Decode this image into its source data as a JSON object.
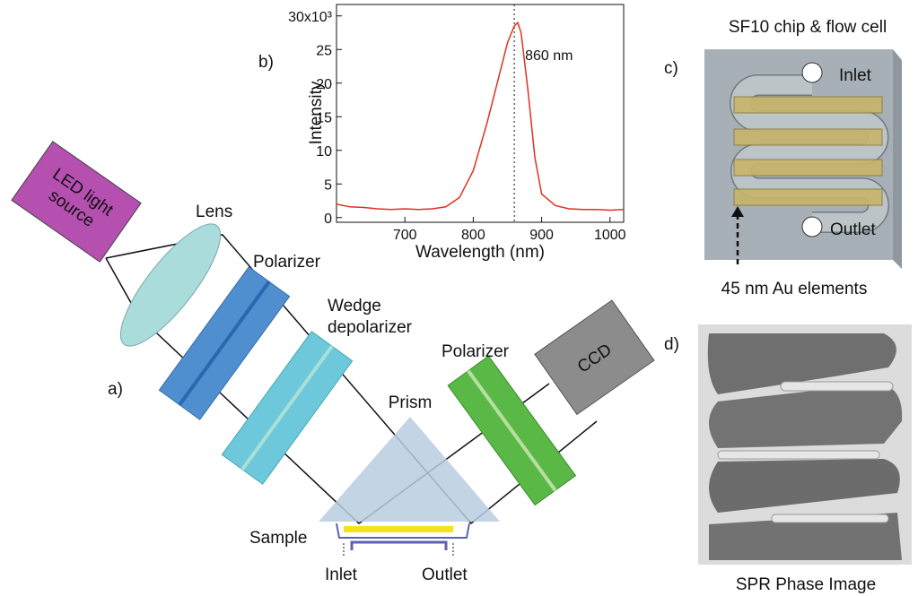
{
  "panel_a": {
    "label": "a)",
    "led": [
      "LED light",
      "source"
    ],
    "lens": "Lens",
    "polarizer_1": "Polarizer",
    "depolarizer": [
      "Wedge",
      "depolarizer"
    ],
    "polarizer_2": "Polarizer",
    "ccd": "CCD",
    "prism": "Prism",
    "sample": "Sample",
    "inlet": "Inlet",
    "outlet": "Outlet"
  },
  "chart_data": {
    "type": "line",
    "panel_label": "b)",
    "x_label": "Wavelength (nm)",
    "y_label": "Intensity",
    "x": [
      600,
      620,
      640,
      660,
      680,
      700,
      720,
      740,
      760,
      780,
      800,
      820,
      840,
      850,
      860,
      865,
      870,
      880,
      890,
      900,
      920,
      940,
      960,
      980,
      1000,
      1020
    ],
    "values": [
      2,
      1.6,
      1.5,
      1.3,
      1.2,
      1.3,
      1.2,
      1.3,
      1.6,
      3,
      7,
      14,
      22,
      26,
      28.5,
      29,
      27.5,
      19,
      9,
      3.5,
      1.8,
      1.3,
      1.2,
      1.2,
      1.1,
      1.2
    ],
    "color": "#e03020",
    "xlim": [
      600,
      1020
    ],
    "ylim": [
      -0.7,
      31.7
    ],
    "xticks": [
      700,
      800,
      900,
      1000
    ],
    "yticks": [
      0,
      5,
      10,
      15,
      20,
      25,
      {
        "value": 30,
        "label": "30x10³"
      }
    ],
    "annotations": [
      {
        "x": 860,
        "label": "860 nm"
      }
    ]
  },
  "panel_c": {
    "label": "c)",
    "title": "SF10 chip & flow cell",
    "inlet": "Inlet",
    "outlet": "Outlet",
    "caption": "45 nm Au elements"
  },
  "panel_d": {
    "label": "d)",
    "caption": "SPR Phase Image"
  }
}
